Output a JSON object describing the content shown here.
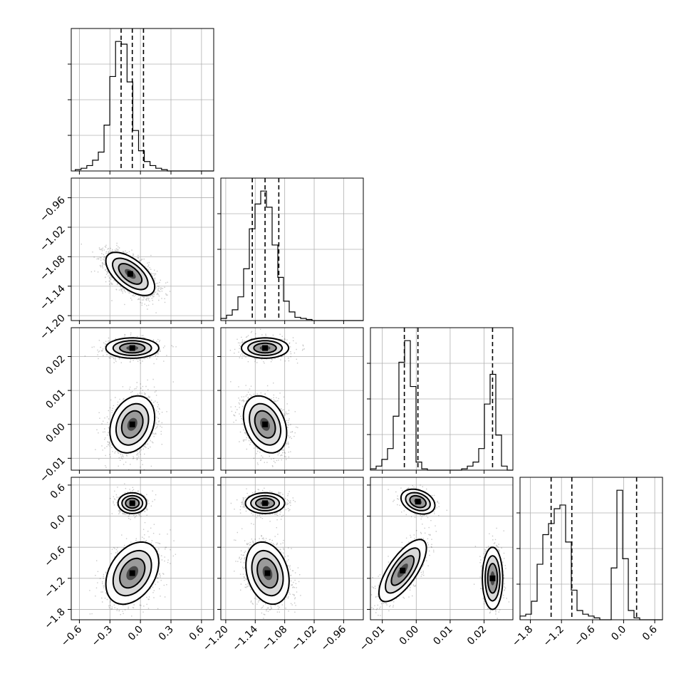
{
  "chart_data": {
    "type": "scatter",
    "subtype": "corner-plot",
    "grid": true,
    "parameters": [
      {
        "ticks": [
          -0.6,
          -0.3,
          0.0,
          0.3,
          0.6
        ],
        "tick_labels": [
          "−0.6",
          "−0.3",
          "0.0",
          "0.3",
          "0.6"
        ],
        "range": [
          -0.68,
          0.72
        ],
        "quantiles": [
          -0.19,
          -0.08,
          0.03
        ],
        "histogram": {
          "bin_start": -0.64,
          "bin_width": 0.0565,
          "counts": [
            1,
            2,
            4,
            8,
            14,
            34,
            70,
            96,
            94,
            66,
            30,
            15,
            7,
            4,
            2,
            1,
            0,
            0,
            0,
            0,
            0,
            0,
            0,
            0,
            0
          ],
          "max_count": 96
        }
      },
      {
        "ticks": [
          -1.2,
          -1.14,
          -1.08,
          -1.02,
          -0.96
        ],
        "tick_labels": [
          "−1.20",
          "−1.14",
          "−1.08",
          "−1.02",
          "−0.96"
        ],
        "range": [
          -1.21,
          -0.92
        ],
        "quantiles": [
          -1.146,
          -1.12,
          -1.092
        ],
        "histogram": {
          "bin_start": -1.21,
          "bin_width": 0.0116,
          "counts": [
            2,
            5,
            10,
            22,
            48,
            85,
            108,
            120,
            105,
            70,
            40,
            18,
            8,
            3,
            2,
            1,
            0,
            0,
            0,
            0,
            0,
            0,
            0,
            0,
            0
          ],
          "max_count": 120
        }
      },
      {
        "ticks": [
          -0.01,
          0.0,
          0.01,
          0.02
        ],
        "tick_labels": [
          "−0.01",
          "0.00",
          "0.01",
          "0.02"
        ],
        "range": [
          -0.0135,
          0.0285
        ],
        "quantiles": [
          -0.0035,
          0.0005,
          0.0225
        ],
        "histogram": {
          "bin_start": -0.0135,
          "bin_width": 0.00168,
          "counts": [
            1,
            3,
            8,
            16,
            40,
            80,
            96,
            62,
            6,
            1,
            0,
            0,
            0,
            0,
            0,
            0,
            1,
            3,
            6,
            16,
            49,
            71,
            26,
            3,
            0
          ],
          "max_count": 96
        }
      },
      {
        "ticks": [
          -1.8,
          -1.2,
          -0.6,
          0.0,
          0.6
        ],
        "tick_labels": [
          "−1.8",
          "−1.2",
          "−0.6",
          "0.0",
          "0.6"
        ],
        "range": [
          -2.0,
          0.75
        ],
        "quantiles": [
          -1.4,
          -1.0,
          0.25
        ],
        "histogram": {
          "bin_start": -2.0,
          "bin_width": 0.11,
          "counts": [
            2,
            3,
            10,
            30,
            46,
            52,
            60,
            62,
            42,
            16,
            5,
            3,
            2,
            1,
            0,
            0,
            28,
            70,
            33,
            5,
            1,
            0,
            0,
            0,
            0
          ],
          "max_count": 70
        }
      }
    ],
    "pairs": [
      {
        "row": 1,
        "col": 0,
        "blobs": [
          {
            "mx": -0.1,
            "my": -1.115,
            "sx": 0.12,
            "sy": 0.022,
            "rho": -0.6,
            "w": 1
          }
        ]
      },
      {
        "row": 2,
        "col": 0,
        "blobs": [
          {
            "mx": -0.08,
            "my": 0.0,
            "sx": 0.11,
            "sy": 0.0042,
            "rho": 0.25,
            "w": 0.62
          },
          {
            "mx": -0.08,
            "my": 0.0225,
            "sx": 0.13,
            "sy": 0.0015,
            "rho": 0.0,
            "w": 0.38
          }
        ]
      },
      {
        "row": 2,
        "col": 1,
        "blobs": [
          {
            "mx": -1.12,
            "my": 0.0,
            "sx": 0.022,
            "sy": 0.0042,
            "rho": -0.3,
            "w": 0.62
          },
          {
            "mx": -1.12,
            "my": 0.0225,
            "sx": 0.024,
            "sy": 0.0015,
            "rho": 0.0,
            "w": 0.38
          }
        ]
      },
      {
        "row": 3,
        "col": 0,
        "blobs": [
          {
            "mx": -0.08,
            "my": -1.1,
            "sx": 0.13,
            "sy": 0.3,
            "rho": 0.35,
            "w": 0.62
          },
          {
            "mx": -0.08,
            "my": 0.25,
            "sx": 0.07,
            "sy": 0.1,
            "rho": 0.0,
            "w": 0.38
          }
        ]
      },
      {
        "row": 3,
        "col": 1,
        "blobs": [
          {
            "mx": -1.115,
            "my": -1.1,
            "sx": 0.022,
            "sy": 0.3,
            "rho": -0.25,
            "w": 0.62
          },
          {
            "mx": -1.12,
            "my": 0.25,
            "sx": 0.02,
            "sy": 0.1,
            "rho": 0.0,
            "w": 0.38
          }
        ]
      },
      {
        "row": 3,
        "col": 2,
        "blobs": [
          {
            "mx": -0.004,
            "my": -1.05,
            "sx": 0.0035,
            "sy": 0.3,
            "rho": 0.72,
            "w": 0.4
          },
          {
            "mx": 0.0225,
            "my": -1.2,
            "sx": 0.0015,
            "sy": 0.3,
            "rho": 0.0,
            "w": 0.35
          },
          {
            "mx": 0.0005,
            "my": 0.28,
            "sx": 0.0025,
            "sy": 0.12,
            "rho": -0.3,
            "w": 0.25
          }
        ]
      }
    ]
  }
}
